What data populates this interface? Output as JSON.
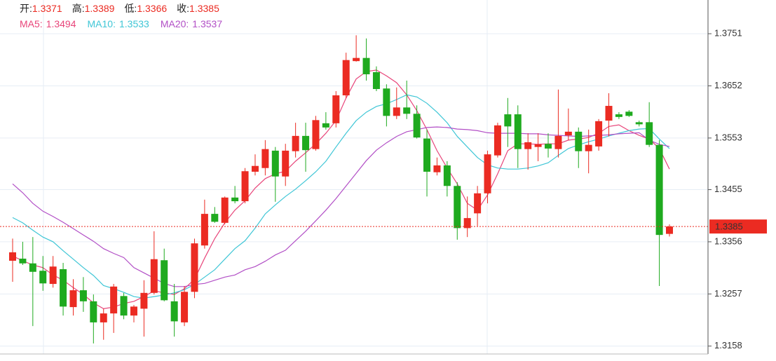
{
  "chart_data": {
    "type": "candlestick",
    "ohlc_header": [
      {
        "label": "开:",
        "value": 1.3371
      },
      {
        "label": "高:",
        "value": 1.3389
      },
      {
        "label": "低:",
        "value": 1.3366
      },
      {
        "label": "收:",
        "value": 1.3385
      }
    ],
    "ylim": [
      1.3143,
      1.3815
    ],
    "yticks": [
      1.3751,
      1.3652,
      1.3553,
      1.3455,
      1.3356,
      1.3257,
      1.3158
    ],
    "grid": true,
    "up_color": "#eb2b22",
    "down_color": "#1faa1f",
    "current_price": 1.3385,
    "open": [
      1.332,
      1.3324,
      1.3315,
      1.3301,
      1.3276,
      1.3304,
      1.3232,
      1.3264,
      1.3243,
      1.3203,
      1.322,
      1.3253,
      1.3216,
      1.3229,
      1.3259,
      1.3321,
      1.3243,
      1.3203,
      1.3261,
      1.3349,
      1.3409,
      1.3392,
      1.344,
      1.3433,
      1.3489,
      1.3496,
      1.3529,
      1.348,
      1.3528,
      1.3557,
      1.3532,
      1.3581,
      1.3581,
      1.3634,
      1.3699,
      1.3705,
      1.3678,
      1.3647,
      1.3595,
      1.3611,
      1.3599,
      1.3552,
      1.3488,
      1.3501,
      1.3462,
      1.3382,
      1.341,
      1.3448,
      1.352,
      1.3598,
      1.3598,
      1.3532,
      1.3536,
      1.3542,
      1.3532,
      1.3558,
      1.3565,
      1.3528,
      1.3537,
      1.3586,
      1.3598,
      1.3603,
      1.3583,
      1.3583,
      1.354,
      1.3371
    ],
    "close": [
      1.3336,
      1.3315,
      1.3299,
      1.3277,
      1.3309,
      1.3233,
      1.3264,
      1.3243,
      1.3203,
      1.322,
      1.3271,
      1.3216,
      1.3233,
      1.3259,
      1.3323,
      1.3245,
      1.3205,
      1.3261,
      1.3353,
      1.3409,
      1.3394,
      1.344,
      1.3433,
      1.349,
      1.35,
      1.3532,
      1.348,
      1.3529,
      1.3557,
      1.353,
      1.3587,
      1.3573,
      1.3634,
      1.3701,
      1.3705,
      1.3674,
      1.3646,
      1.3595,
      1.3611,
      1.3599,
      1.3554,
      1.3489,
      1.3501,
      1.3462,
      1.3382,
      1.3401,
      1.3448,
      1.3522,
      1.3577,
      1.3575,
      1.3532,
      1.3545,
      1.3541,
      1.3533,
      1.3557,
      1.3565,
      1.3528,
      1.354,
      1.3585,
      1.3614,
      1.3593,
      1.3595,
      1.3579,
      1.354,
      1.3369,
      1.3385
    ],
    "high": [
      1.3362,
      1.3356,
      1.3365,
      1.3329,
      1.3329,
      1.3316,
      1.3285,
      1.3289,
      1.3256,
      1.3229,
      1.3276,
      1.3259,
      1.3236,
      1.3283,
      1.3376,
      1.3343,
      1.3276,
      1.3272,
      1.3362,
      1.3436,
      1.3422,
      1.3442,
      1.3462,
      1.3496,
      1.3522,
      1.3549,
      1.3536,
      1.3542,
      1.3582,
      1.3582,
      1.3595,
      1.3602,
      1.3642,
      1.3715,
      1.3748,
      1.3742,
      1.3689,
      1.3655,
      1.3649,
      1.3662,
      1.3615,
      1.3569,
      1.3516,
      1.3509,
      1.3469,
      1.3442,
      1.3462,
      1.3529,
      1.3582,
      1.3629,
      1.3615,
      1.3562,
      1.3562,
      1.3562,
      1.3645,
      1.3609,
      1.3573,
      1.3569,
      1.3589,
      1.3638,
      1.3602,
      1.3606,
      1.3586,
      1.3621,
      1.3549,
      1.3389
    ],
    "low": [
      1.328,
      1.3312,
      1.3196,
      1.3263,
      1.3269,
      1.3216,
      1.3216,
      1.3223,
      1.3163,
      1.317,
      1.3183,
      1.3209,
      1.3203,
      1.3176,
      1.3256,
      1.3243,
      1.3176,
      1.3196,
      1.3249,
      1.3343,
      1.3392,
      1.3389,
      1.3429,
      1.3429,
      1.3482,
      1.3482,
      1.3432,
      1.3462,
      1.3516,
      1.3489,
      1.3529,
      1.3569,
      1.3573,
      1.3629,
      1.3698,
      1.3662,
      1.3642,
      1.3575,
      1.3589,
      1.3589,
      1.3552,
      1.3442,
      1.3482,
      1.3442,
      1.336,
      1.3365,
      1.3386,
      1.3429,
      1.3516,
      1.3536,
      1.3496,
      1.3493,
      1.3509,
      1.3516,
      1.3516,
      1.3549,
      1.3496,
      1.3486,
      1.3529,
      1.3556,
      1.3589,
      1.3593,
      1.3575,
      1.3536,
      1.3272,
      1.3366
    ],
    "series": [
      {
        "name": "MA5:",
        "color": "#e8457a",
        "legend_value": 1.3494,
        "values": [
          1.3329,
          1.332,
          1.3312,
          1.3307,
          1.3293,
          1.3283,
          1.3269,
          1.3256,
          1.324,
          1.3229,
          1.3232,
          1.3239,
          1.3243,
          1.3252,
          1.3263,
          1.3259,
          1.3256,
          1.3267,
          1.3285,
          1.3325,
          1.3362,
          1.3392,
          1.3416,
          1.3434,
          1.3458,
          1.3476,
          1.3485,
          1.349,
          1.3509,
          1.3525,
          1.3542,
          1.3562,
          1.3586,
          1.3629,
          1.3665,
          1.3679,
          1.3682,
          1.3671,
          1.3658,
          1.3635,
          1.3605,
          1.3569,
          1.3529,
          1.3496,
          1.3466,
          1.3429,
          1.3416,
          1.3445,
          1.3485,
          1.3529,
          1.3542,
          1.3542,
          1.3541,
          1.3542,
          1.3542,
          1.3549,
          1.3551,
          1.3554,
          1.3562,
          1.3575,
          1.3578,
          1.3567,
          1.3558,
          1.3551,
          1.3533,
          1.3494
        ]
      },
      {
        "name": "MA10:",
        "color": "#3fc6d6",
        "legend_value": 1.3533,
        "values": [
          1.3402,
          1.3392,
          1.3378,
          1.3365,
          1.3356,
          1.3339,
          1.3323,
          1.3307,
          1.3292,
          1.3273,
          1.3267,
          1.326,
          1.3252,
          1.3249,
          1.3252,
          1.3255,
          1.3259,
          1.3265,
          1.3275,
          1.3289,
          1.3303,
          1.3323,
          1.3343,
          1.3358,
          1.3382,
          1.3409,
          1.3426,
          1.3442,
          1.3456,
          1.3472,
          1.3489,
          1.3509,
          1.3536,
          1.3562,
          1.3586,
          1.3602,
          1.3613,
          1.3618,
          1.3626,
          1.3635,
          1.3631,
          1.3619,
          1.3602,
          1.3582,
          1.3556,
          1.3536,
          1.3516,
          1.3502,
          1.3496,
          1.3494,
          1.3494,
          1.3496,
          1.35,
          1.3506,
          1.352,
          1.3533,
          1.354,
          1.3546,
          1.3551,
          1.3557,
          1.3562,
          1.3567,
          1.357,
          1.3571,
          1.3551,
          1.3533
        ]
      },
      {
        "name": "MA20:",
        "color": "#b24fc6",
        "legend_value": 1.3537,
        "values": [
          1.3466,
          1.3449,
          1.3429,
          1.3414,
          1.3404,
          1.3393,
          1.3381,
          1.3369,
          1.3357,
          1.3343,
          1.3334,
          1.3326,
          1.3307,
          1.3297,
          1.3287,
          1.3277,
          1.3271,
          1.3271,
          1.3275,
          1.3277,
          1.3283,
          1.3289,
          1.3293,
          1.3303,
          1.3309,
          1.3319,
          1.3331,
          1.334,
          1.3358,
          1.3376,
          1.3396,
          1.3416,
          1.3438,
          1.3462,
          1.3486,
          1.351,
          1.353,
          1.3544,
          1.3556,
          1.3565,
          1.3569,
          1.3573,
          1.3574,
          1.3573,
          1.357,
          1.3569,
          1.3567,
          1.3563,
          1.3562,
          1.3562,
          1.3562,
          1.3561,
          1.3561,
          1.3559,
          1.3558,
          1.3557,
          1.3556,
          1.3557,
          1.3558,
          1.3559,
          1.3561,
          1.3562,
          1.3563,
          1.3549,
          1.3541,
          1.3537
        ]
      }
    ]
  }
}
